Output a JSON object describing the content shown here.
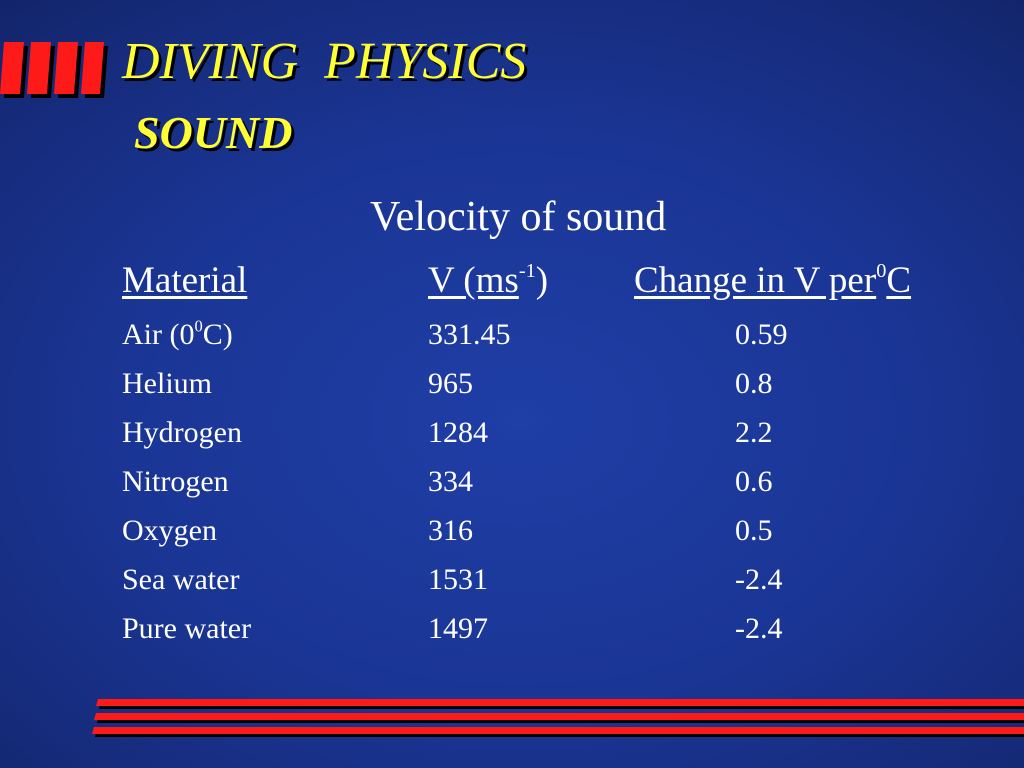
{
  "slide": {
    "title": "DIVING  PHYSICS",
    "subtitle": "SOUND",
    "accent_color": "#ff1a1a",
    "title_color": "#ffff33",
    "background_color": "#1a3594"
  },
  "table": {
    "heading": "Velocity of sound",
    "header": {
      "material": "Material",
      "velocity_text": "V (ms",
      "velocity_sup": "-1",
      "velocity_close": ")",
      "change_text": "Change in V per",
      "change_sup": "0",
      "change_unit": "C"
    },
    "rows": [
      {
        "material": "Air (0",
        "material_sup": "0",
        "material_tail": "C)",
        "velocity": "331.45",
        "change": "0.59"
      },
      {
        "material": "Helium",
        "velocity": "965",
        "change": "0.8"
      },
      {
        "material": "Hydrogen",
        "velocity": "1284",
        "change": "2.2"
      },
      {
        "material": "Nitrogen",
        "velocity": "334",
        "change": "0.6"
      },
      {
        "material": "Oxygen",
        "velocity": "316",
        "change": "0.5"
      },
      {
        "material": "Sea water",
        "velocity": "1531",
        "change": "-2.4"
      },
      {
        "material": "Pure water",
        "velocity": "1497",
        "change": "-2.4"
      }
    ]
  }
}
